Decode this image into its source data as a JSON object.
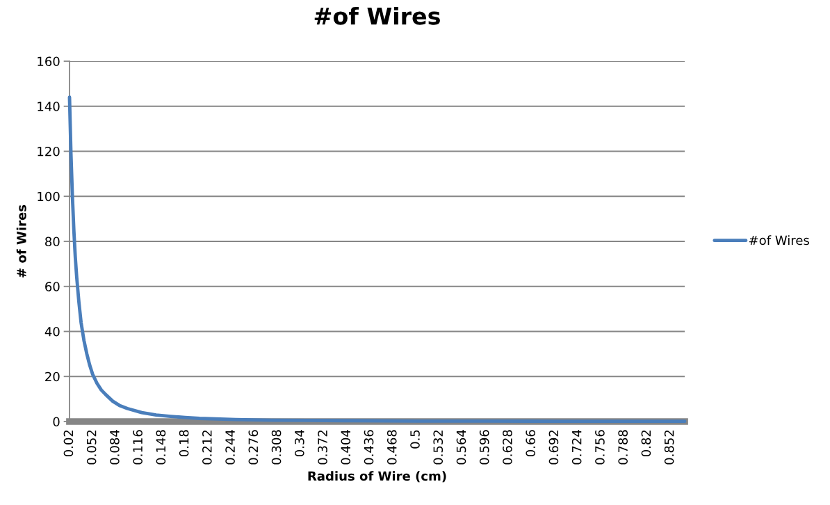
{
  "chart_data": {
    "type": "line",
    "title": "#of Wires",
    "xlabel": "Radius of Wire (cm)",
    "ylabel": "# of Wires",
    "x": [
      0.02,
      0.022,
      0.024,
      0.026,
      0.028,
      0.03,
      0.033,
      0.036,
      0.04,
      0.044,
      0.048,
      0.052,
      0.058,
      0.064,
      0.07,
      0.08,
      0.09,
      0.1,
      0.12,
      0.14,
      0.16,
      0.18,
      0.2,
      0.25,
      0.3,
      0.35,
      0.4,
      0.5,
      0.6,
      0.7,
      0.8,
      0.872
    ],
    "series": [
      {
        "name": "#of Wires",
        "color": "#4a7ebb",
        "values": [
          144,
          119,
          100,
          85,
          73,
          64,
          53,
          44,
          36,
          30,
          25,
          21,
          17,
          14,
          12,
          9,
          7,
          5.8,
          4,
          2.9,
          2.3,
          1.8,
          1.4,
          0.9,
          0.6,
          0.5,
          0.4,
          0.2,
          0.2,
          0.1,
          0.1,
          0.1
        ]
      }
    ],
    "xlim": [
      0.02,
      0.872
    ],
    "xticks": [
      0.02,
      0.052,
      0.084,
      0.116,
      0.148,
      0.18,
      0.212,
      0.244,
      0.276,
      0.308,
      0.34,
      0.372,
      0.404,
      0.436,
      0.468,
      0.5,
      0.532,
      0.564,
      0.596,
      0.628,
      0.66,
      0.692,
      0.724,
      0.756,
      0.788,
      0.82,
      0.852
    ],
    "ylim": [
      0,
      160
    ],
    "yticks": [
      0,
      20,
      40,
      60,
      80,
      100,
      120,
      140,
      160
    ],
    "grid": "y",
    "legend": "right",
    "marker": "none",
    "line_style": "solid"
  }
}
